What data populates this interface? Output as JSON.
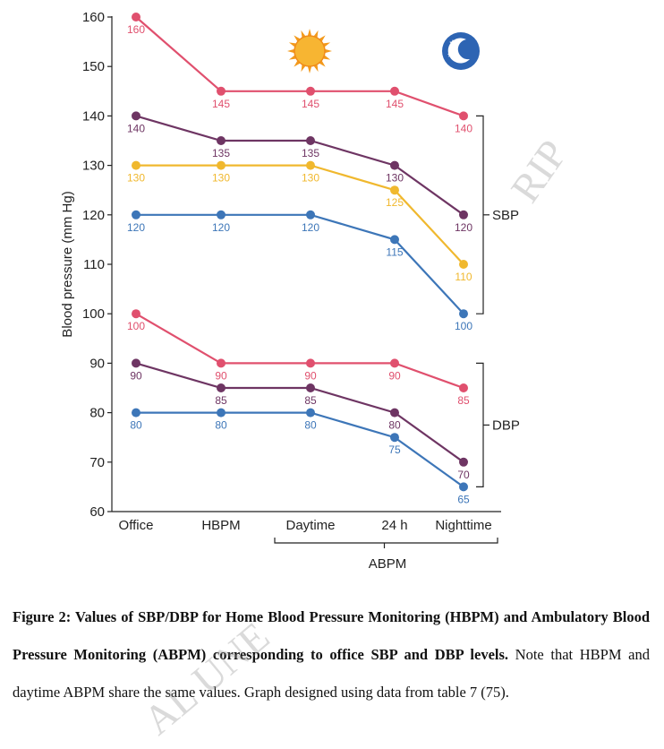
{
  "chart_data": {
    "type": "line",
    "ylabel": "Blood pressure (mm Hg)",
    "ylim": [
      60,
      160
    ],
    "yticks": [
      60,
      70,
      80,
      90,
      100,
      110,
      120,
      130,
      140,
      150,
      160
    ],
    "categories": [
      "Office",
      "HBPM",
      "Daytime",
      "24 h",
      "Nighttime"
    ],
    "group_labels": {
      "abpm": "ABPM",
      "sbp": "SBP",
      "dbp": "DBP"
    },
    "series": [
      {
        "name": "SBP 160",
        "group": "SBP",
        "color": "#e0506e",
        "values": [
          160,
          145,
          145,
          145,
          140
        ]
      },
      {
        "name": "SBP 140",
        "group": "SBP",
        "color": "#6e3563",
        "values": [
          140,
          135,
          135,
          130,
          120
        ]
      },
      {
        "name": "SBP 130",
        "group": "SBP",
        "color": "#f0b82e",
        "values": [
          130,
          130,
          130,
          125,
          110
        ]
      },
      {
        "name": "SBP 120",
        "group": "SBP",
        "color": "#3d76b8",
        "values": [
          120,
          120,
          120,
          115,
          100
        ]
      },
      {
        "name": "DBP 100",
        "group": "DBP",
        "color": "#e0506e",
        "values": [
          100,
          90,
          90,
          90,
          85
        ]
      },
      {
        "name": "DBP 90",
        "group": "DBP",
        "color": "#6e3563",
        "values": [
          90,
          85,
          85,
          80,
          70
        ]
      },
      {
        "name": "DBP 80",
        "group": "DBP",
        "color": "#3d76b8",
        "values": [
          80,
          80,
          80,
          75,
          65
        ]
      }
    ],
    "sbp_range": [
      100,
      140
    ],
    "dbp_range": [
      65,
      90
    ],
    "icons": [
      "sun-icon",
      "moon-icon"
    ]
  },
  "caption": {
    "bold": "Figure 2: Values of SBP/DBP for Home Blood Pressure Monitoring (HBPM) and Ambulatory Blood Pressure Monitoring (ABPM) corresponding to office SBP and DBP levels.",
    "normal": " Note that HBPM and daytime ABPM share the same values. Graph designed using data from table 7 (75)."
  },
  "watermark": "ACCEPTED MANUSCRIPT"
}
